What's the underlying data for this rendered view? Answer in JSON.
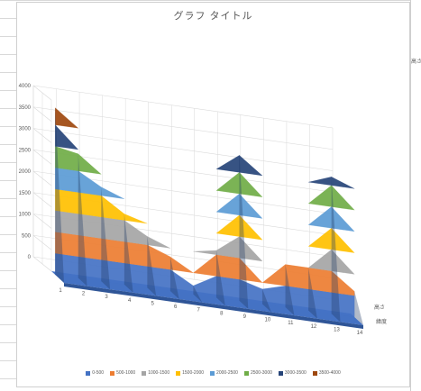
{
  "chart_data": {
    "type": "surface-3d",
    "title": "グラフ タイトル",
    "x_categories": [
      "1",
      "2",
      "3",
      "4",
      "5",
      "6",
      "7",
      "8",
      "9",
      "10",
      "11",
      "12",
      "13",
      "14"
    ],
    "series": [
      {
        "name": "高さ",
        "values": [
          3900,
          2900,
          2200,
          1650,
          1200,
          800,
          200,
          1100,
          3400,
          350,
          1000,
          1000,
          3200,
          600
        ]
      },
      {
        "name": "緯度",
        "values": [
          0,
          0,
          0,
          0,
          0,
          0,
          0,
          0,
          0,
          0,
          0,
          0,
          0,
          0
        ]
      }
    ],
    "z_ticks": [
      "0",
      "500",
      "1000",
      "1500",
      "2000",
      "2500",
      "3000",
      "3500",
      "4000"
    ],
    "z_range": [
      0,
      4000
    ],
    "legend": [
      {
        "label": "0-500",
        "color": "#4472c4"
      },
      {
        "label": "500-1000",
        "color": "#ed7d31"
      },
      {
        "label": "1000-1500",
        "color": "#a5a5a5"
      },
      {
        "label": "1500-2000",
        "color": "#ffc000"
      },
      {
        "label": "2000-2500",
        "color": "#5b9bd5"
      },
      {
        "label": "2500-3000",
        "color": "#70ad47"
      },
      {
        "label": "3000-3500",
        "color": "#264478"
      },
      {
        "label": "3500-4000",
        "color": "#9e480e"
      }
    ],
    "legend_position": "bottom",
    "gridlines": true
  },
  "sheet": {
    "partial_label": "高さ"
  }
}
